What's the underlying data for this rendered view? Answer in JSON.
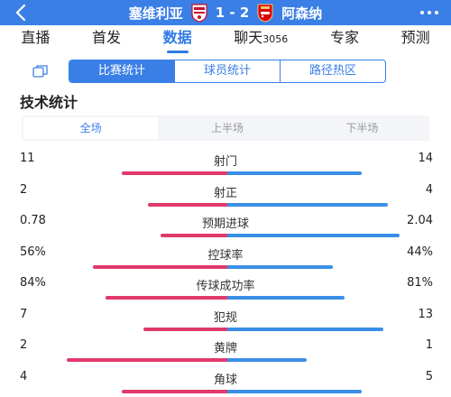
{
  "header": {
    "home_team": "塞维利亚",
    "score": "1 - 2",
    "away_team": "阿森纳",
    "home_color": "#c8102e",
    "away_color": "#db0007",
    "bar_color": "#3a7fe6"
  },
  "tabs": [
    {
      "label": "直播",
      "count": ""
    },
    {
      "label": "首发",
      "count": ""
    },
    {
      "label": "数据",
      "count": ""
    },
    {
      "label": "聊天",
      "count": "3056"
    },
    {
      "label": "专家",
      "count": ""
    },
    {
      "label": "预测",
      "count": ""
    }
  ],
  "active_tab": 2,
  "segments": [
    "比赛统计",
    "球员统计",
    "路径热区"
  ],
  "active_segment": 0,
  "section_title": "技术统计",
  "periods": [
    "全场",
    "上半场",
    "下半场"
  ],
  "active_period": 0,
  "colors": {
    "home_bar": "#e0396a",
    "away_bar": "#3a8ee6",
    "accent": "#2f7ae5"
  },
  "stats": [
    {
      "name": "射门",
      "home": "11",
      "away": "14",
      "home_share": 0.44,
      "away_share": 0.56
    },
    {
      "name": "射正",
      "home": "2",
      "away": "4",
      "home_share": 0.33,
      "away_share": 0.67
    },
    {
      "name": "预期进球",
      "home": "0.78",
      "away": "2.04",
      "home_share": 0.28,
      "away_share": 0.72
    },
    {
      "name": "控球率",
      "home": "56%",
      "away": "44%",
      "home_share": 0.56,
      "away_share": 0.44
    },
    {
      "name": "传球成功率",
      "home": "84%",
      "away": "81%",
      "home_share": 0.51,
      "away_share": 0.49
    },
    {
      "name": "犯规",
      "home": "7",
      "away": "13",
      "home_share": 0.35,
      "away_share": 0.65
    },
    {
      "name": "黄牌",
      "home": "2",
      "away": "1",
      "home_share": 0.67,
      "away_share": 0.33
    },
    {
      "name": "角球",
      "home": "4",
      "away": "5",
      "home_share": 0.44,
      "away_share": 0.56
    }
  ]
}
